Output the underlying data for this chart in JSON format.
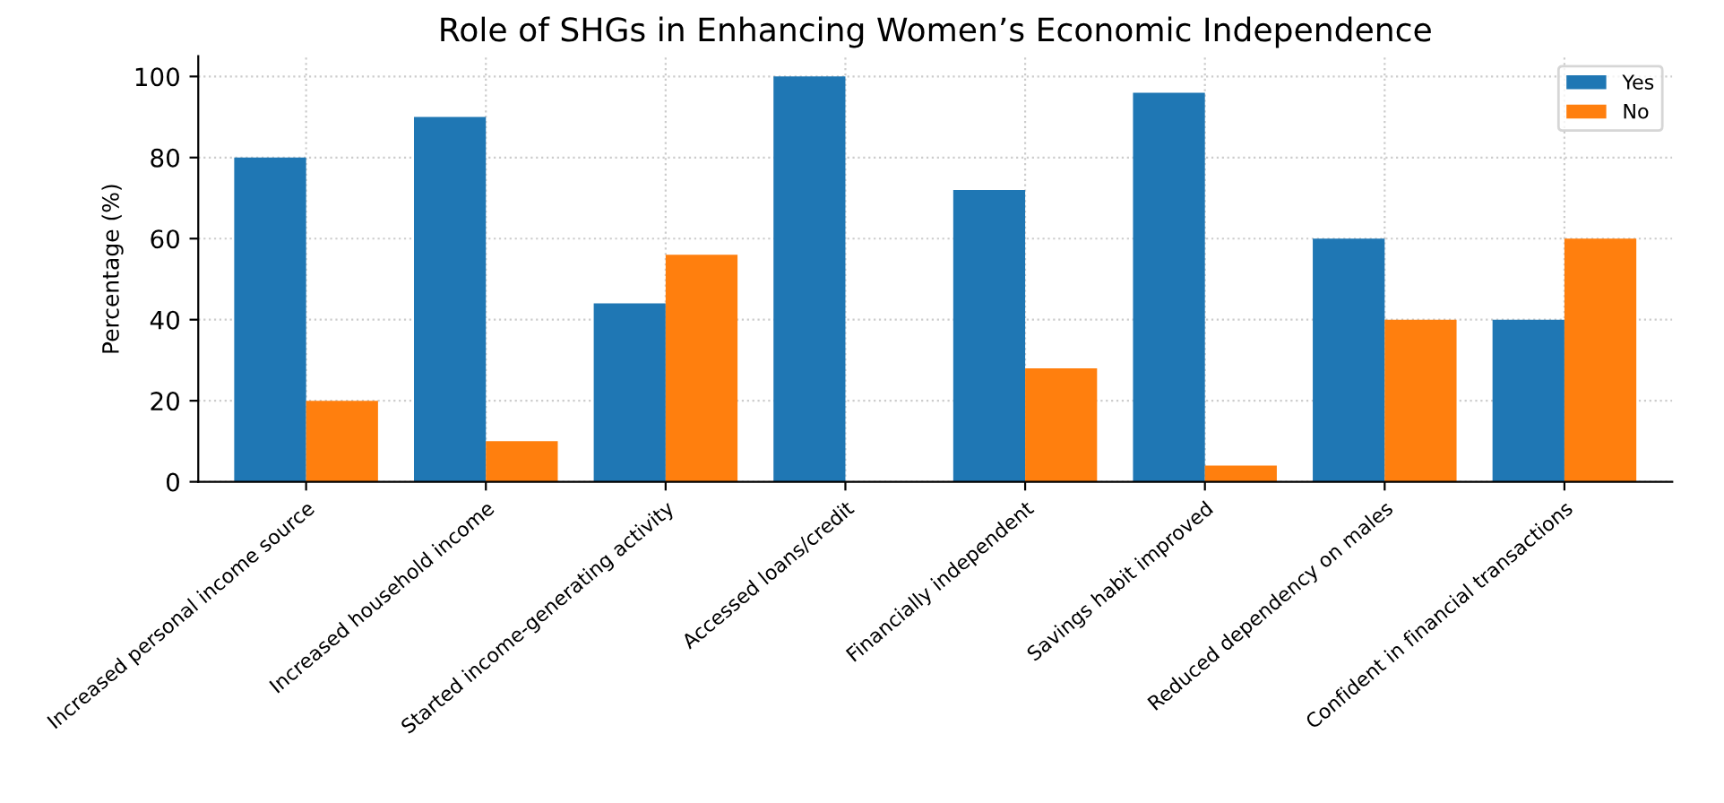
{
  "chart_data": {
    "type": "bar",
    "title": "Role of SHGs in Enhancing Women’s Economic Independence",
    "ylabel": "Percentage (%)",
    "categories": [
      "Increased personal income source",
      "Increased household income",
      "Started income-generating activity",
      "Accessed loans/credit",
      "Financially independent",
      "Savings habit improved",
      "Reduced dependency on males",
      "Confident in financial transactions"
    ],
    "series": [
      {
        "name": "Yes",
        "color": "#1f77b4",
        "values": [
          80,
          90,
          44,
          100,
          72,
          96,
          60,
          40
        ]
      },
      {
        "name": "No",
        "color": "#ff7f0e",
        "values": [
          20,
          10,
          56,
          0,
          28,
          4,
          40,
          60
        ]
      }
    ],
    "ylim": [
      0,
      105
    ],
    "yticks": [
      0,
      20,
      40,
      60,
      80,
      100
    ],
    "grid": true,
    "legend": "top right"
  }
}
